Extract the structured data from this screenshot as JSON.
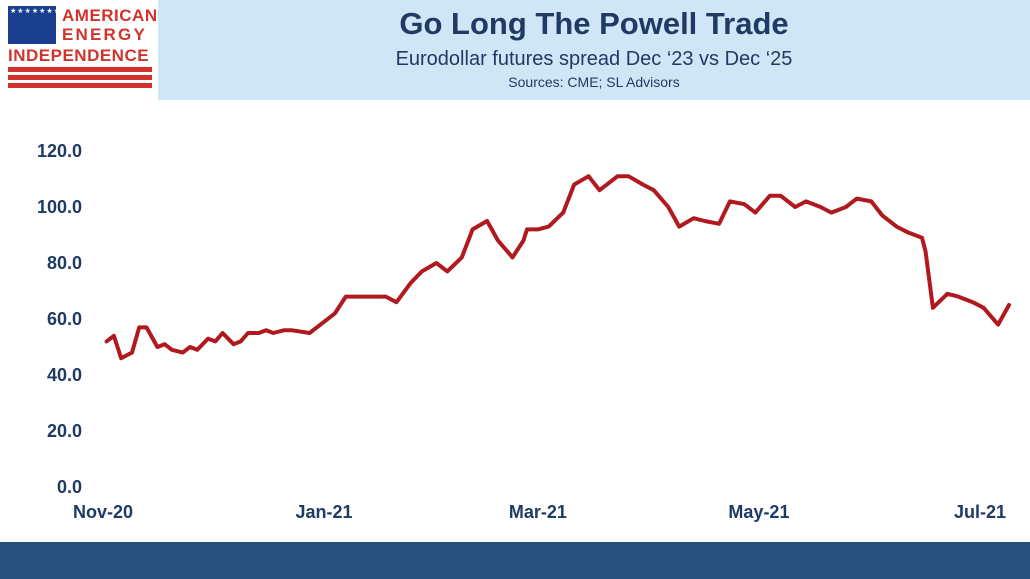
{
  "logo": {
    "line1": "AMERICAN",
    "line2": "ENERGY",
    "line3": "INDEPENDENCE",
    "stars": "★★★★★★★★★★★★★★★★★★★★★★★★★★★★★★★★★★★★",
    "colors": {
      "red": "#d0342c",
      "blue": "#1b3f8f"
    }
  },
  "header": {
    "title": "Go Long The Powell Trade",
    "subtitle": "Eurodollar futures spread Dec ‘23 vs Dec ‘25",
    "source": "Sources: CME; SL Advisors",
    "background": "#cfe6f7"
  },
  "chart_data": {
    "type": "line",
    "title": "Go Long The Powell Trade",
    "subtitle": "Eurodollar futures spread Dec ‘23 vs Dec ‘25",
    "xlabel": "",
    "ylabel": "",
    "ylim": [
      0,
      120
    ],
    "yticks": [
      "0.0",
      "20.0",
      "40.0",
      "60.0",
      "80.0",
      "100.0",
      "120.0"
    ],
    "xticks": [
      "Nov-20",
      "Jan-21",
      "Mar-21",
      "May-21",
      "Jul-21"
    ],
    "grid": false,
    "legend": "none",
    "line_color": "#b0191e",
    "series": [
      {
        "x": [
          "2020-11-02",
          "2020-11-04",
          "2020-11-06",
          "2020-11-09",
          "2020-11-11",
          "2020-11-13",
          "2020-11-16",
          "2020-11-18",
          "2020-11-20",
          "2020-11-23",
          "2020-11-25",
          "2020-11-27",
          "2020-11-30",
          "2020-12-02",
          "2020-12-04",
          "2020-12-07",
          "2020-12-09",
          "2020-12-11",
          "2020-12-14",
          "2020-12-16",
          "2020-12-18",
          "2020-12-21",
          "2020-12-23",
          "2020-12-28",
          "2020-12-30",
          "2021-01-04",
          "2021-01-07",
          "2021-01-11",
          "2021-01-14",
          "2021-01-18",
          "2021-01-21",
          "2021-01-25",
          "2021-01-28",
          "2021-02-01",
          "2021-02-04",
          "2021-02-08",
          "2021-02-11",
          "2021-02-15",
          "2021-02-18",
          "2021-02-22",
          "2021-02-25",
          "2021-02-26",
          "2021-03-01",
          "2021-03-04",
          "2021-03-08",
          "2021-03-11",
          "2021-03-15",
          "2021-03-18",
          "2021-03-19",
          "2021-03-23",
          "2021-03-26",
          "2021-03-30",
          "2021-04-02",
          "2021-04-06",
          "2021-04-09",
          "2021-04-13",
          "2021-04-16",
          "2021-04-20",
          "2021-04-23",
          "2021-04-27",
          "2021-04-30",
          "2021-05-04",
          "2021-05-07",
          "2021-05-11",
          "2021-05-14",
          "2021-05-18",
          "2021-05-21",
          "2021-05-25",
          "2021-05-28",
          "2021-06-01",
          "2021-06-04",
          "2021-06-08",
          "2021-06-11",
          "2021-06-15",
          "2021-06-16",
          "2021-06-18",
          "2021-06-22",
          "2021-06-25",
          "2021-06-29",
          "2021-07-02",
          "2021-07-06",
          "2021-07-09"
        ],
        "y": [
          52,
          54,
          46,
          48,
          57,
          57,
          50,
          51,
          49,
          48,
          50,
          49,
          53,
          52,
          55,
          51,
          52,
          55,
          55,
          56,
          55,
          56,
          56,
          55,
          57,
          62,
          68,
          68,
          68,
          68,
          66,
          73,
          77,
          80,
          77,
          82,
          92,
          95,
          88,
          82,
          88,
          92,
          92,
          93,
          98,
          108,
          111,
          106,
          107,
          111,
          111,
          108,
          106,
          100,
          93,
          96,
          95,
          94,
          102,
          101,
          98,
          104,
          104,
          100,
          102,
          100,
          98,
          100,
          103,
          102,
          97,
          93,
          91,
          89,
          84,
          64,
          69,
          68,
          66,
          64,
          58,
          65
        ]
      }
    ]
  }
}
